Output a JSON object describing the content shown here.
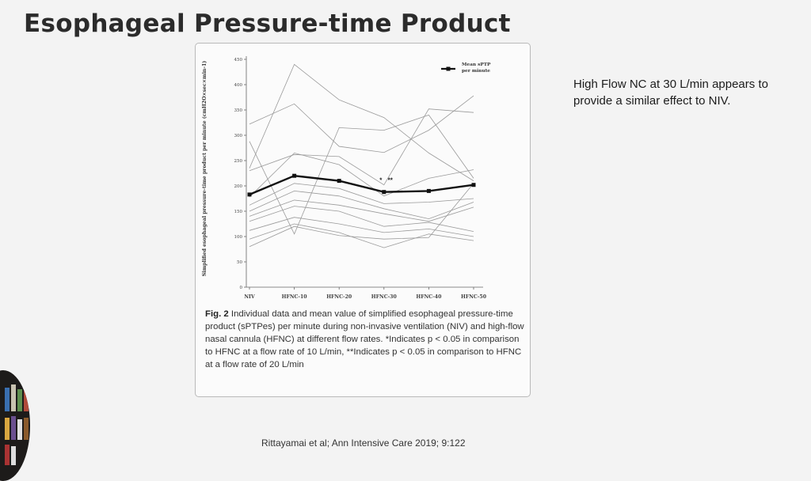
{
  "slide": {
    "title": "Esophageal Pressure-time Product",
    "side_note": "High Flow NC at 30 L/min appears to provide a similar effect to NIV.",
    "citation": "Rittayamai et al; Ann Intensive Care 2019; 9:122"
  },
  "caption": {
    "fig_label": "Fig. 2",
    "text": "Individual data and mean value of simplified esophageal pressure-time product (sPTPes) per minute during non-invasive ventilation (NIV) and high-flow nasal cannula (HFNC) at different flow rates. *Indicates p < 0.05 in comparison to HFNC at a flow rate of 10 L/min, **Indicates p < 0.05 in comparison to HFNC at a flow rate of 20 L/min"
  },
  "colors": {
    "mean_line": "#111111",
    "individual_lines": "#9a9a9a"
  },
  "chart_data": {
    "type": "line",
    "ylabel": "Simplified esophageal pressure-time product per minute (cmH2O×sec×min-1)",
    "xlabel": "",
    "ylim": [
      0,
      450
    ],
    "yticks": [
      0,
      50,
      100,
      150,
      200,
      250,
      300,
      350,
      400,
      450
    ],
    "categories": [
      "NIV",
      "HFNC-10",
      "HFNC-20",
      "HFNC-30",
      "HFNC-40",
      "HFNC-50"
    ],
    "legend": {
      "label": "Mean sPTP per minute",
      "placement": "top-right"
    },
    "annotations": [
      {
        "text": "*",
        "x": "HFNC-30"
      },
      {
        "text": "**",
        "x": "HFNC-30"
      }
    ],
    "mean_series": {
      "name": "Mean sPTP per minute",
      "values": [
        183,
        220,
        210,
        188,
        190,
        202
      ]
    },
    "individual_series": [
      {
        "values": [
          235,
          440,
          370,
          335,
          265,
          210
        ]
      },
      {
        "values": [
          322,
          362,
          278,
          266,
          310,
          378
        ]
      },
      {
        "values": [
          230,
          262,
          258,
          202,
          352,
          345
        ]
      },
      {
        "values": [
          288,
          105,
          315,
          310,
          340,
          215
        ]
      },
      {
        "values": [
          178,
          265,
          242,
          180,
          215,
          232
        ]
      },
      {
        "values": [
          162,
          205,
          195,
          165,
          168,
          175
        ]
      },
      {
        "values": [
          150,
          190,
          180,
          155,
          135,
          168
        ]
      },
      {
        "values": [
          140,
          172,
          162,
          145,
          130,
          158
        ]
      },
      {
        "values": [
          130,
          160,
          150,
          120,
          128,
          110
        ]
      },
      {
        "values": [
          112,
          138,
          125,
          108,
          115,
          100
        ]
      },
      {
        "values": [
          95,
          125,
          108,
          78,
          105,
          92
        ]
      },
      {
        "values": [
          80,
          120,
          102,
          95,
          98,
          205
        ]
      }
    ]
  }
}
